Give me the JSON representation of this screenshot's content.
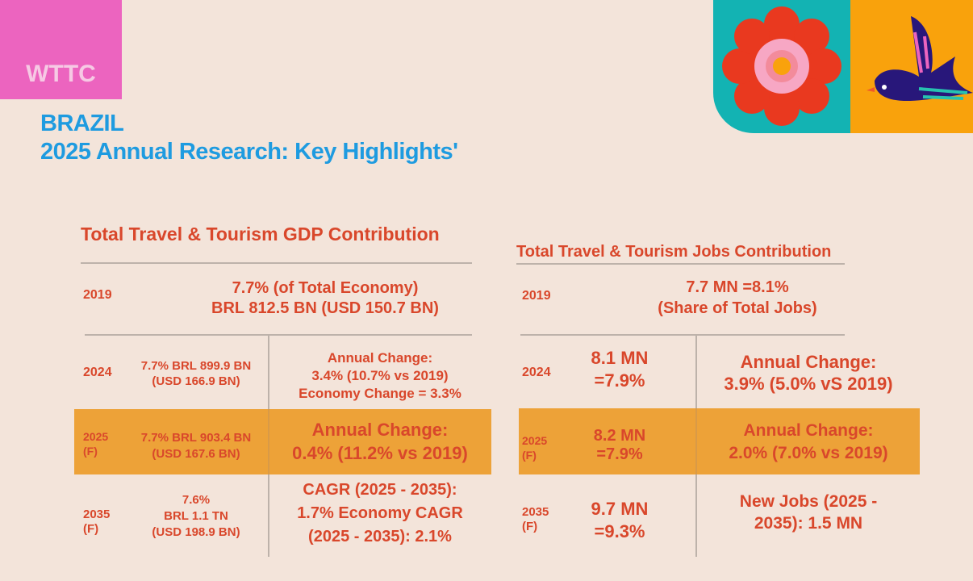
{
  "logo": "WTTC",
  "title": {
    "country": "BRAZIL",
    "subtitle": "2025 Annual Research: Key Highlights'"
  },
  "gdp": {
    "heading": "Total Travel & Tourism GDP Contribution",
    "r2019": {
      "year": "2019",
      "l1": "7.7% (of Total Economy)",
      "l2": "BRL 812.5 BN (USD 150.7 BN)"
    },
    "r2024": {
      "year": "2024",
      "v1": "7.7% BRL 899.9 BN",
      "v2": "(USD 166.9 BN)",
      "c1": "Annual Change:",
      "c2": "3.4% (10.7% vs 2019)",
      "c3": "Economy Change = 3.3%"
    },
    "r2025": {
      "year": "2025",
      "f": "(F)",
      "v1": "7.7% BRL 903.4 BN",
      "v2": "(USD 167.6 BN)",
      "c1": "Annual Change:",
      "c2": "0.4% (11.2% vs 2019)"
    },
    "r2035": {
      "year": "2035",
      "f": "(F)",
      "v1": "7.6%",
      "v2": "BRL 1.1 TN",
      "v3": "(USD 198.9 BN)",
      "c1": "CAGR (2025 - 2035):",
      "c2": "1.7% Economy CAGR",
      "c3": "(2025 - 2035): 2.1%"
    }
  },
  "jobs": {
    "heading": "Total Travel & Tourism Jobs Contribution",
    "r2019": {
      "year": "2019",
      "l1": "7.7 MN =8.1%",
      "l2": "(Share of Total Jobs)"
    },
    "r2024": {
      "year": "2024",
      "v1": "8.1 MN",
      "v2": "=7.9%",
      "c1": "Annual Change:",
      "c2": "3.9% (5.0% vS 2019)"
    },
    "r2025": {
      "year": "2025",
      "f": "(F)",
      "v1": "8.2 MN",
      "v2": "=7.9%",
      "c1": "Annual Change:",
      "c2": "2.0% (7.0% vs 2019)"
    },
    "r2035": {
      "year": "2035",
      "f": "(F)",
      "v1": "9.7 MN",
      "v2": "=9.3%",
      "c1": "New Jobs (2025 -",
      "c2": "2035): 1.5 MN"
    }
  }
}
